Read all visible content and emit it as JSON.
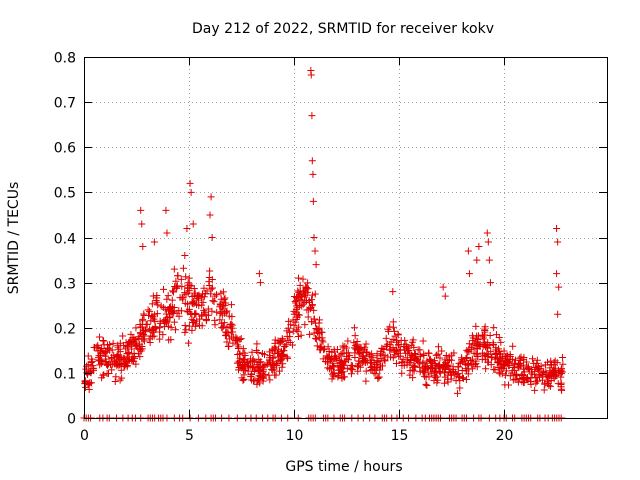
{
  "chart_data": {
    "type": "scatter",
    "title": "Day 212 of 2022, SRMTID for receiver kokv",
    "xlabel": "GPS time / hours",
    "ylabel": "SRMTID / TECUs",
    "xlim": [
      0,
      24.9
    ],
    "ylim": [
      0,
      0.8
    ],
    "x_ticks": [
      0,
      5,
      10,
      15,
      20
    ],
    "x_tick_labels": [
      "0",
      "5",
      "10",
      "15",
      "20"
    ],
    "y_ticks": [
      0,
      0.1,
      0.2,
      0.3,
      0.4,
      0.5,
      0.6,
      0.7,
      0.8
    ],
    "y_tick_labels": [
      "0",
      "0.1",
      "0.2",
      "0.3",
      "0.4",
      "0.5",
      "0.6",
      "0.7",
      "0.8"
    ],
    "grid": true,
    "marker": "plus",
    "series_color": "#e00000",
    "data_extent_hours": [
      0,
      22.8
    ],
    "baseline": {
      "segments": [
        [
          0.0,
          0.35
        ],
        [
          1.1,
          1.25
        ],
        [
          1.55,
          1.65
        ],
        [
          2.3,
          2.35
        ],
        [
          2.45,
          2.5
        ],
        [
          3.05,
          3.45
        ],
        [
          3.55,
          3.8
        ],
        [
          3.95,
          3.95
        ],
        [
          4.7,
          4.75
        ],
        [
          5.45,
          5.5
        ],
        [
          6.05,
          6.3
        ],
        [
          7.3,
          7.35
        ],
        [
          8.2,
          8.25
        ],
        [
          8.5,
          8.55
        ],
        [
          9.0,
          9.15
        ],
        [
          9.7,
          9.8
        ],
        [
          10.7,
          11.05
        ],
        [
          11.4,
          11.65
        ],
        [
          12.2,
          12.5
        ],
        [
          13.05,
          13.05
        ],
        [
          13.6,
          13.65
        ],
        [
          14.2,
          14.45
        ],
        [
          15.8,
          15.9
        ],
        [
          16.45,
          17.05
        ],
        [
          17.4,
          17.75
        ],
        [
          18.0,
          18.3
        ],
        [
          18.8,
          19.0
        ],
        [
          20.0,
          20.15
        ],
        [
          20.4,
          20.6
        ],
        [
          20.85,
          21.3
        ],
        [
          21.6,
          21.75
        ],
        [
          22.3,
          22.75
        ]
      ],
      "singles": [
        0.75,
        0.9,
        1.85,
        2.1,
        2.7,
        4.3,
        4.55,
        5.05,
        5.8,
        6.55,
        6.9,
        7.7,
        7.95,
        8.75,
        9.4,
        10.2,
        11.9,
        12.75,
        13.3,
        13.85,
        14.65,
        14.9,
        15.2,
        15.45,
        16.1,
        16.25,
        18.55,
        19.3,
        19.6,
        19.8,
        21.95,
        22.1
      ]
    },
    "envelope": [
      {
        "x": 0.0,
        "y": 0.08
      },
      {
        "x": 0.3,
        "y": 0.1
      },
      {
        "x": 0.6,
        "y": 0.15
      },
      {
        "x": 1.0,
        "y": 0.13
      },
      {
        "x": 1.5,
        "y": 0.12
      },
      {
        "x": 2.0,
        "y": 0.14
      },
      {
        "x": 2.5,
        "y": 0.16
      },
      {
        "x": 3.0,
        "y": 0.2
      },
      {
        "x": 3.5,
        "y": 0.21
      },
      {
        "x": 4.0,
        "y": 0.22
      },
      {
        "x": 4.5,
        "y": 0.27
      },
      {
        "x": 5.0,
        "y": 0.25
      },
      {
        "x": 5.5,
        "y": 0.24
      },
      {
        "x": 6.0,
        "y": 0.28
      },
      {
        "x": 6.5,
        "y": 0.24
      },
      {
        "x": 7.0,
        "y": 0.2
      },
      {
        "x": 7.5,
        "y": 0.13
      },
      {
        "x": 8.0,
        "y": 0.12
      },
      {
        "x": 8.5,
        "y": 0.1
      },
      {
        "x": 9.0,
        "y": 0.13
      },
      {
        "x": 9.5,
        "y": 0.14
      },
      {
        "x": 10.0,
        "y": 0.22
      },
      {
        "x": 10.5,
        "y": 0.27
      },
      {
        "x": 11.0,
        "y": 0.22
      },
      {
        "x": 11.5,
        "y": 0.13
      },
      {
        "x": 12.0,
        "y": 0.12
      },
      {
        "x": 12.5,
        "y": 0.13
      },
      {
        "x": 13.0,
        "y": 0.14
      },
      {
        "x": 13.5,
        "y": 0.13
      },
      {
        "x": 14.0,
        "y": 0.11
      },
      {
        "x": 14.5,
        "y": 0.18
      },
      {
        "x": 15.0,
        "y": 0.15
      },
      {
        "x": 15.5,
        "y": 0.14
      },
      {
        "x": 16.0,
        "y": 0.12
      },
      {
        "x": 16.5,
        "y": 0.11
      },
      {
        "x": 17.0,
        "y": 0.12
      },
      {
        "x": 17.5,
        "y": 0.11
      },
      {
        "x": 18.0,
        "y": 0.1
      },
      {
        "x": 18.5,
        "y": 0.15
      },
      {
        "x": 19.0,
        "y": 0.17
      },
      {
        "x": 19.5,
        "y": 0.15
      },
      {
        "x": 20.0,
        "y": 0.12
      },
      {
        "x": 20.5,
        "y": 0.11
      },
      {
        "x": 21.0,
        "y": 0.1
      },
      {
        "x": 21.5,
        "y": 0.1
      },
      {
        "x": 22.0,
        "y": 0.09
      },
      {
        "x": 22.5,
        "y": 0.1
      },
      {
        "x": 22.8,
        "y": 0.1
      }
    ],
    "spikes": [
      {
        "x": 2.7,
        "y": 0.46
      },
      {
        "x": 2.75,
        "y": 0.43
      },
      {
        "x": 2.8,
        "y": 0.38
      },
      {
        "x": 3.35,
        "y": 0.39
      },
      {
        "x": 3.9,
        "y": 0.46
      },
      {
        "x": 3.95,
        "y": 0.41
      },
      {
        "x": 4.3,
        "y": 0.33
      },
      {
        "x": 4.8,
        "y": 0.36
      },
      {
        "x": 4.9,
        "y": 0.42
      },
      {
        "x": 5.05,
        "y": 0.52
      },
      {
        "x": 5.1,
        "y": 0.5
      },
      {
        "x": 5.2,
        "y": 0.43
      },
      {
        "x": 6.0,
        "y": 0.45
      },
      {
        "x": 6.05,
        "y": 0.49
      },
      {
        "x": 6.1,
        "y": 0.4
      },
      {
        "x": 8.35,
        "y": 0.32
      },
      {
        "x": 8.4,
        "y": 0.3
      },
      {
        "x": 10.8,
        "y": 0.77
      },
      {
        "x": 10.82,
        "y": 0.76
      },
      {
        "x": 10.85,
        "y": 0.67
      },
      {
        "x": 10.87,
        "y": 0.57
      },
      {
        "x": 10.9,
        "y": 0.54
      },
      {
        "x": 10.92,
        "y": 0.48
      },
      {
        "x": 10.95,
        "y": 0.4
      },
      {
        "x": 11.0,
        "y": 0.37
      },
      {
        "x": 11.05,
        "y": 0.34
      },
      {
        "x": 14.7,
        "y": 0.28
      },
      {
        "x": 17.1,
        "y": 0.29
      },
      {
        "x": 17.2,
        "y": 0.27
      },
      {
        "x": 18.3,
        "y": 0.37
      },
      {
        "x": 18.35,
        "y": 0.32
      },
      {
        "x": 18.7,
        "y": 0.35
      },
      {
        "x": 18.8,
        "y": 0.38
      },
      {
        "x": 19.2,
        "y": 0.41
      },
      {
        "x": 19.25,
        "y": 0.39
      },
      {
        "x": 19.3,
        "y": 0.35
      },
      {
        "x": 19.35,
        "y": 0.3
      },
      {
        "x": 22.5,
        "y": 0.42
      },
      {
        "x": 22.55,
        "y": 0.39
      },
      {
        "x": 22.5,
        "y": 0.32
      },
      {
        "x": 22.6,
        "y": 0.29
      },
      {
        "x": 22.55,
        "y": 0.23
      }
    ]
  }
}
